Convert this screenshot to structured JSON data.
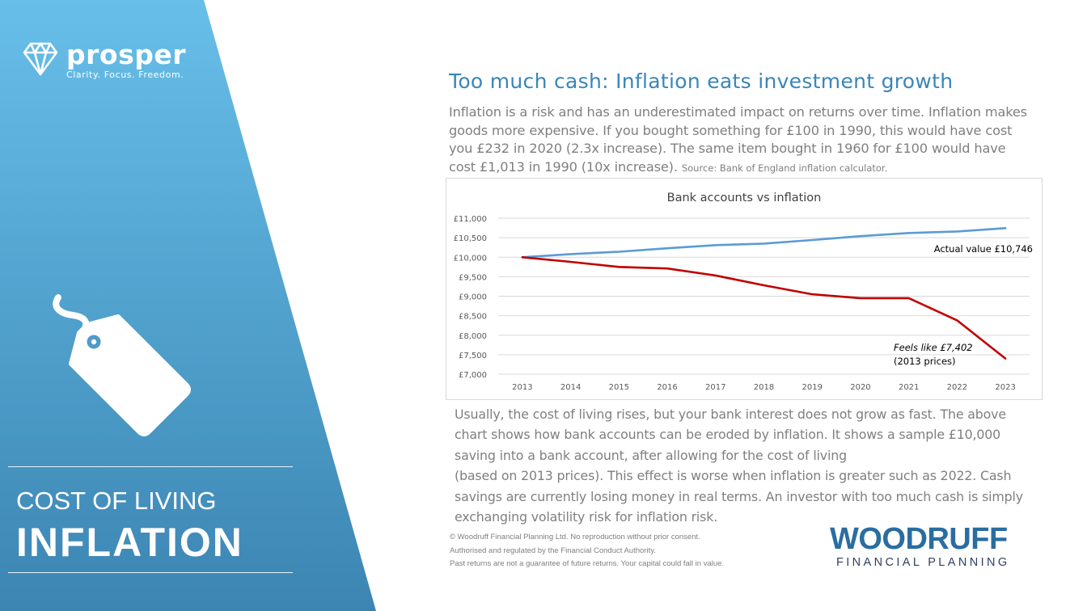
{
  "brand": {
    "name": "prosper",
    "tagline": "Clarity. Focus. Freedom."
  },
  "topic": {
    "label": "COST OF LIVING",
    "title": "INFLATION"
  },
  "headline": "Too much cash: Inflation eats investment growth",
  "intro": {
    "text": "Inflation is a risk and has an underestimated impact on returns over time. Inflation makes goods more expensive. If you bought something for £100 in 1990, this would have cost you £232 in 2020 (2.3x increase). The same item bought in 1960 for £100 would have cost £1,013 in 1990 (10x increase).",
    "source": "Source: Bank of England inflation calculator."
  },
  "chart_data": {
    "type": "line",
    "title": "Bank accounts vs inflation",
    "xlabel": "",
    "ylabel": "",
    "categories": [
      "2013",
      "2014",
      "2015",
      "2016",
      "2017",
      "2018",
      "2019",
      "2020",
      "2021",
      "2022",
      "2023"
    ],
    "ylim": [
      7000,
      11000
    ],
    "yticks": [
      7000,
      7500,
      8000,
      8500,
      9000,
      9500,
      10000,
      10500,
      11000
    ],
    "ytick_labels": [
      "£7,000",
      "£7,500",
      "£8,000",
      "£8,500",
      "£9,000",
      "£9,500",
      "£10,000",
      "£10,500",
      "£11,000"
    ],
    "grid": true,
    "legend": "none",
    "series": [
      {
        "color": "#5b9bd5",
        "values": [
          10000,
          10080,
          10140,
          10230,
          10310,
          10350,
          10440,
          10540,
          10620,
          10660,
          10746
        ]
      },
      {
        "color": "#c00000",
        "values": [
          10000,
          9880,
          9750,
          9710,
          9530,
          9280,
          9050,
          8950,
          8950,
          8380,
          7402
        ]
      }
    ],
    "annotations": [
      {
        "text": "Actual value £10,746"
      },
      {
        "text": "Feels like £7,402",
        "text2": "(2013 prices)"
      }
    ]
  },
  "body": {
    "para1": "Usually, the cost of living rises, but your bank interest does not grow as fast. The above chart shows how bank accounts can be eroded by inflation.  It shows a sample £10,000 saving into a bank account, after allowing for the cost of living",
    "para2": "(based on 2013 prices). This effect is worse when inflation is greater such as 2022. Cash savings are currently losing money in real terms. An investor with too much cash is simply exchanging volatility risk for inflation risk."
  },
  "footer": {
    "line1": "© Woodruff Financial Planning Ltd. No reproduction without prior consent.",
    "line2": "Authorised and regulated by the Financial Conduct Authority.",
    "line3": "Past returns are not a guarantee of future returns. Your capital could fall in value."
  },
  "woodruff": {
    "name": "WOODRUFF",
    "subtitle": "FINANCIAL PLANNING"
  },
  "colors": {
    "panel_top": "#67bfe9",
    "panel_bottom": "#3c85b3",
    "headline": "#3a86b8",
    "body_text": "#7f7f7f",
    "actual_line": "#5b9bd5",
    "real_line": "#c00000"
  }
}
